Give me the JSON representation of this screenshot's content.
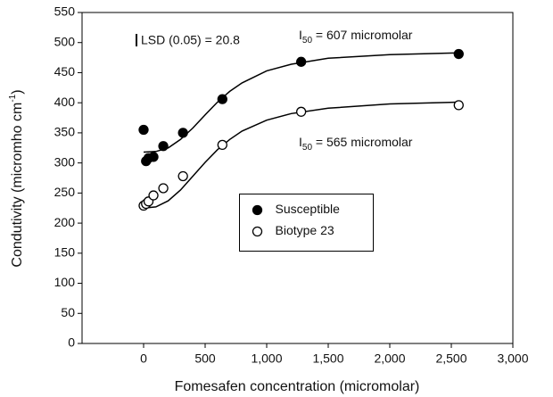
{
  "chart_data": {
    "type": "scatter",
    "x_label": "Fomesafen concentration (micromolar)",
    "y_label": {
      "main": "Condutivity (micromho cm",
      "sup": "-1",
      "end": ")"
    },
    "xlim": [
      -500,
      3000
    ],
    "ylim": [
      0,
      550
    ],
    "xticks": [
      0,
      500,
      {
        "value": 1000,
        "label": "1,000"
      },
      {
        "value": 1500,
        "label": "1,500"
      },
      {
        "value": 2000,
        "label": "2,000"
      },
      {
        "value": 2500,
        "label": "2,500"
      },
      {
        "value": 3000,
        "label": "3,000"
      }
    ],
    "yticks": [
      0,
      50,
      100,
      150,
      200,
      250,
      300,
      350,
      400,
      450,
      500,
      550
    ],
    "legend": "center",
    "series": [
      {
        "name": "Susceptible",
        "color": "#000000",
        "marker": "filled",
        "x": [
          0,
          20,
          40,
          80,
          160,
          320,
          640,
          1280,
          2560
        ],
        "values": [
          355,
          303,
          308,
          310,
          328,
          350,
          406,
          468,
          481
        ]
      },
      {
        "name": "Biotype 23",
        "color": "#000000",
        "marker": "open",
        "x": [
          0,
          20,
          40,
          80,
          160,
          320,
          640,
          1280,
          2560
        ],
        "values": [
          229,
          232,
          236,
          246,
          258,
          278,
          330,
          385,
          396
        ]
      }
    ],
    "fits": [
      {
        "color": "#000000",
        "x": [
          0,
          100,
          200,
          300,
          400,
          500,
          600,
          700,
          800,
          1000,
          1200,
          1500,
          2000,
          2560
        ],
        "values": [
          318,
          319,
          325,
          339,
          358,
          380,
          401,
          419,
          433,
          453,
          464,
          474,
          480,
          483
        ]
      },
      {
        "color": "#000000",
        "x": [
          0,
          100,
          200,
          300,
          400,
          500,
          600,
          700,
          800,
          1000,
          1200,
          1500,
          2000,
          2560
        ],
        "values": [
          225,
          227,
          237,
          255,
          278,
          301,
          322,
          339,
          353,
          371,
          382,
          391,
          398,
          401
        ]
      }
    ],
    "annotations": {
      "lsd": "LSD (0.05) = 20.8",
      "i50_susceptible": {
        "text": "I",
        "sub": "50",
        "rest": " = 607 micromolar"
      },
      "i50_biotype": {
        "text": "I",
        "sub": "50",
        "rest": " = 565 micromolar"
      }
    }
  }
}
